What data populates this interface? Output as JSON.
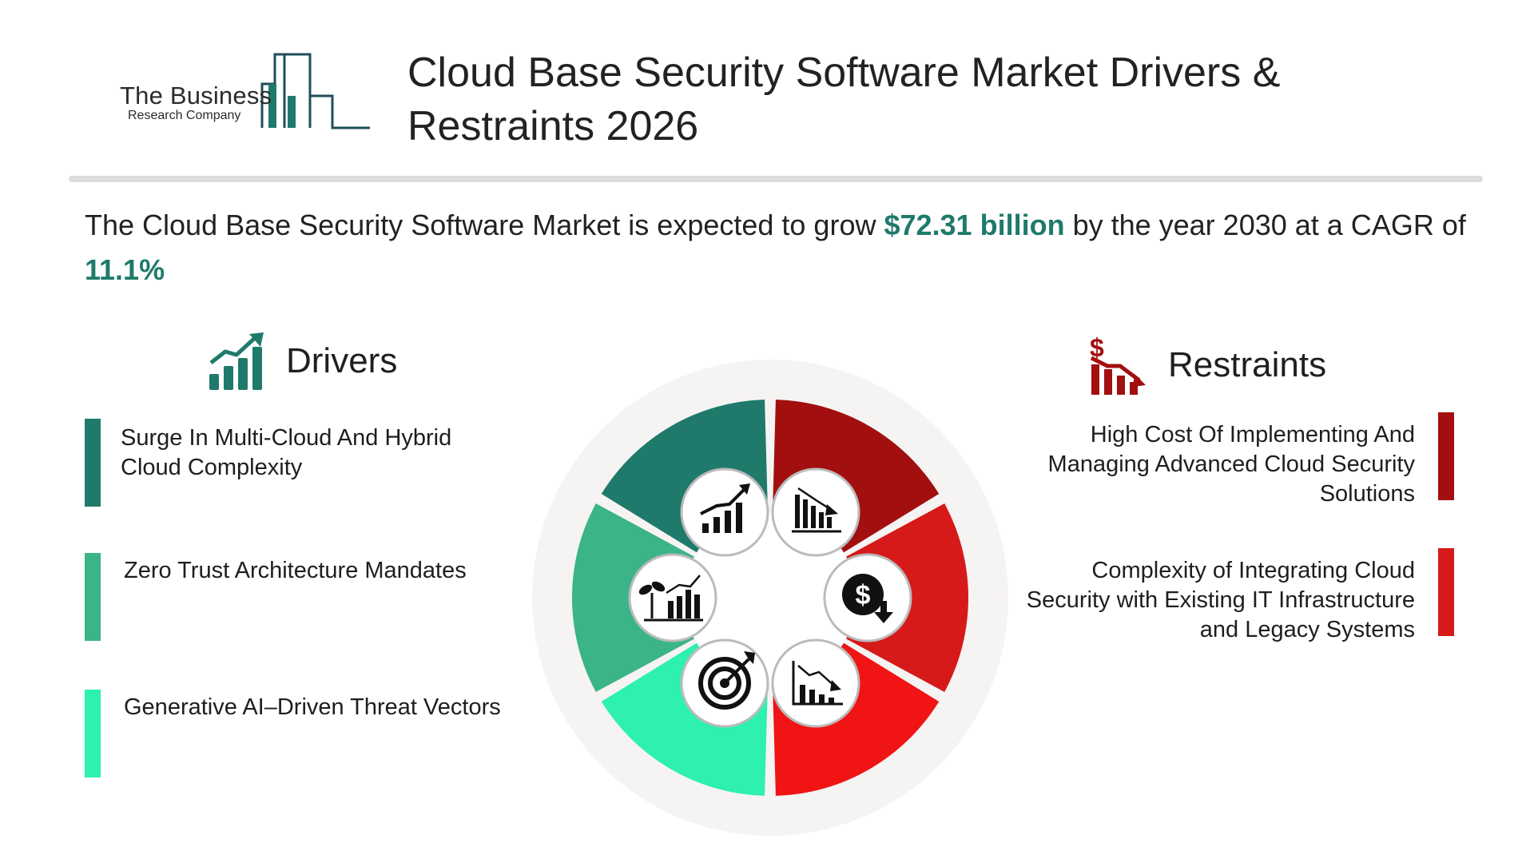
{
  "logo": {
    "line1": "The Business",
    "line2": "Research Company"
  },
  "title": "Cloud Base Security Software Market Drivers & Restraints 2026",
  "summary": {
    "prefix": "The Cloud Base Security Software Market is expected to grow ",
    "value": "$72.31 billion",
    "middle": " by the year 2030 at a CAGR of ",
    "cagr": "11.1%"
  },
  "drivers": {
    "label": "Drivers",
    "icon": "growth-chart-icon",
    "items": [
      {
        "text": "Surge In Multi-Cloud And Hybrid Cloud Complexity",
        "color": "#1f7a6b"
      },
      {
        "text": "Zero Trust Architecture Mandates",
        "color": "#3bb487"
      },
      {
        "text": "Generative AI–Driven Threat Vectors",
        "color": "#2ef0b0"
      }
    ]
  },
  "restraints": {
    "label": "Restraints",
    "icon": "dollar-decline-chart-icon",
    "items": [
      {
        "text": "High Cost Of Implementing And Managing Advanced Cloud Security Solutions",
        "color": "#a30f0f"
      },
      {
        "text": "Complexity of Integrating Cloud Security with Existing IT Infrastructure and Legacy Systems",
        "color": "#d61a1a"
      }
    ]
  },
  "wheel": {
    "segment_colors": [
      "#1f7a6b",
      "#3bb487",
      "#2ef0b0",
      "#a30f0f",
      "#d61a1a",
      "#f01414"
    ],
    "icons": [
      "growth-chart-icon",
      "plant-growth-chart-icon",
      "target-icon",
      "declining-bar-chart-icon",
      "dollar-down-icon",
      "declining-line-chart-icon"
    ]
  },
  "colors": {
    "accent": "#1f7a6b",
    "restraint": "#a30f0f",
    "divider": "#dcdcdc"
  }
}
